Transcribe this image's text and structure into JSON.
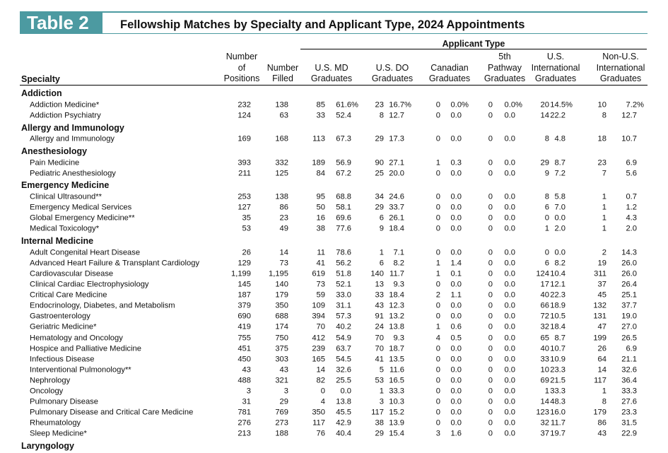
{
  "header": {
    "label": "Table 2",
    "title": "Fellowship Matches by Specialty and Applicant Type, 2024 Appointments"
  },
  "table": {
    "super_header": "Applicant Type",
    "columns": [
      [
        "Specialty"
      ],
      [
        "Number",
        "of",
        "Positions"
      ],
      [
        "Number",
        "Filled"
      ],
      [
        "U.S. MD",
        "Graduates"
      ],
      [
        "U.S. DO",
        "Graduates"
      ],
      [
        "Canadian",
        "Graduates"
      ],
      [
        "5th",
        "Pathway",
        "Graduates"
      ],
      [
        "U.S.",
        "International",
        "Graduates"
      ],
      [
        "Non-U.S.",
        "International",
        "Graduates"
      ]
    ],
    "groups": [
      {
        "name": "Addiction",
        "rows": [
          [
            "Addiction Medicine*",
            "232",
            "138",
            "85",
            "61.6%",
            "23",
            "16.7%",
            "0",
            "0.0%",
            "0",
            "0.0%",
            "20",
            "14.5%",
            "10",
            "7.2%"
          ],
          [
            "Addiction Psychiatry",
            "124",
            "63",
            "33",
            "52.4",
            "8",
            "12.7",
            "0",
            "0.0",
            "0",
            "0.0",
            "14",
            "22.2",
            "8",
            "12.7"
          ]
        ]
      },
      {
        "name": "Allergy and Immunology",
        "rows": [
          [
            "Allergy and Immunology",
            "169",
            "168",
            "113",
            "67.3",
            "29",
            "17.3",
            "0",
            "0.0",
            "0",
            "0.0",
            "8",
            "4.8",
            "18",
            "10.7"
          ]
        ]
      },
      {
        "name": "Anesthesiology",
        "rows": [
          [
            "Pain Medicine",
            "393",
            "332",
            "189",
            "56.9",
            "90",
            "27.1",
            "1",
            "0.3",
            "0",
            "0.0",
            "29",
            "8.7",
            "23",
            "6.9"
          ],
          [
            "Pediatric Anesthesiology",
            "211",
            "125",
            "84",
            "67.2",
            "25",
            "20.0",
            "0",
            "0.0",
            "0",
            "0.0",
            "9",
            "7.2",
            "7",
            "5.6"
          ]
        ]
      },
      {
        "name": "Emergency Medicine",
        "rows": [
          [
            "Clinical Ultrasound**",
            "253",
            "138",
            "95",
            "68.8",
            "34",
            "24.6",
            "0",
            "0.0",
            "0",
            "0.0",
            "8",
            "5.8",
            "1",
            "0.7"
          ],
          [
            "Emergency Medical Services",
            "127",
            "86",
            "50",
            "58.1",
            "29",
            "33.7",
            "0",
            "0.0",
            "0",
            "0.0",
            "6",
            "7.0",
            "1",
            "1.2"
          ],
          [
            "Global Emergency Medicine**",
            "35",
            "23",
            "16",
            "69.6",
            "6",
            "26.1",
            "0",
            "0.0",
            "0",
            "0.0",
            "0",
            "0.0",
            "1",
            "4.3"
          ],
          [
            "Medical Toxicology*",
            "53",
            "49",
            "38",
            "77.6",
            "9",
            "18.4",
            "0",
            "0.0",
            "0",
            "0.0",
            "1",
            "2.0",
            "1",
            "2.0"
          ]
        ]
      },
      {
        "name": "Internal Medicine",
        "rows": [
          [
            "Adult Congenital Heart Disease",
            "26",
            "14",
            "11",
            "78.6",
            "1",
            "7.1",
            "0",
            "0.0",
            "0",
            "0.0",
            "0",
            "0.0",
            "2",
            "14.3"
          ],
          [
            "Advanced Heart Failure & Transplant Cardiology",
            "129",
            "73",
            "41",
            "56.2",
            "6",
            "8.2",
            "1",
            "1.4",
            "0",
            "0.0",
            "6",
            "8.2",
            "19",
            "26.0"
          ],
          [
            "Cardiovascular Disease",
            "1,199",
            "1,195",
            "619",
            "51.8",
            "140",
            "11.7",
            "1",
            "0.1",
            "0",
            "0.0",
            "124",
            "10.4",
            "311",
            "26.0"
          ],
          [
            "Clinical Cardiac Electrophysiology",
            "145",
            "140",
            "73",
            "52.1",
            "13",
            "9.3",
            "0",
            "0.0",
            "0",
            "0.0",
            "17",
            "12.1",
            "37",
            "26.4"
          ],
          [
            "Critical Care Medicine",
            "187",
            "179",
            "59",
            "33.0",
            "33",
            "18.4",
            "2",
            "1.1",
            "0",
            "0.0",
            "40",
            "22.3",
            "45",
            "25.1"
          ],
          [
            "Endocrinology, Diabetes, and Metabolism",
            "379",
            "350",
            "109",
            "31.1",
            "43",
            "12.3",
            "0",
            "0.0",
            "0",
            "0.0",
            "66",
            "18.9",
            "132",
            "37.7"
          ],
          [
            "Gastroenterology",
            "690",
            "688",
            "394",
            "57.3",
            "91",
            "13.2",
            "0",
            "0.0",
            "0",
            "0.0",
            "72",
            "10.5",
            "131",
            "19.0"
          ],
          [
            "Geriatric Medicine*",
            "419",
            "174",
            "70",
            "40.2",
            "24",
            "13.8",
            "1",
            "0.6",
            "0",
            "0.0",
            "32",
            "18.4",
            "47",
            "27.0"
          ],
          [
            "Hematology and Oncology",
            "755",
            "750",
            "412",
            "54.9",
            "70",
            "9.3",
            "4",
            "0.5",
            "0",
            "0.0",
            "65",
            "8.7",
            "199",
            "26.5"
          ],
          [
            "Hospice and Palliative Medicine",
            "451",
            "375",
            "239",
            "63.7",
            "70",
            "18.7",
            "0",
            "0.0",
            "0",
            "0.0",
            "40",
            "10.7",
            "26",
            "6.9"
          ],
          [
            "Infectious Disease",
            "450",
            "303",
            "165",
            "54.5",
            "41",
            "13.5",
            "0",
            "0.0",
            "0",
            "0.0",
            "33",
            "10.9",
            "64",
            "21.1"
          ],
          [
            "Interventional Pulmonology**",
            "43",
            "43",
            "14",
            "32.6",
            "5",
            "11.6",
            "0",
            "0.0",
            "0",
            "0.0",
            "10",
            "23.3",
            "14",
            "32.6"
          ],
          [
            "Nephrology",
            "488",
            "321",
            "82",
            "25.5",
            "53",
            "16.5",
            "0",
            "0.0",
            "0",
            "0.0",
            "69",
            "21.5",
            "117",
            "36.4"
          ],
          [
            "Oncology",
            "3",
            "3",
            "0",
            "0.0",
            "1",
            "33.3",
            "0",
            "0.0",
            "0",
            "0.0",
            "1",
            "33.3",
            "1",
            "33.3"
          ],
          [
            "Pulmonary Disease",
            "31",
            "29",
            "4",
            "13.8",
            "3",
            "10.3",
            "0",
            "0.0",
            "0",
            "0.0",
            "14",
            "48.3",
            "8",
            "27.6"
          ],
          [
            "Pulmonary Disease and Critical Care Medicine",
            "781",
            "769",
            "350",
            "45.5",
            "117",
            "15.2",
            "0",
            "0.0",
            "0",
            "0.0",
            "123",
            "16.0",
            "179",
            "23.3"
          ],
          [
            "Rheumatology",
            "276",
            "273",
            "117",
            "42.9",
            "38",
            "13.9",
            "0",
            "0.0",
            "0",
            "0.0",
            "32",
            "11.7",
            "86",
            "31.5"
          ],
          [
            "Sleep Medicine*",
            "213",
            "188",
            "76",
            "40.4",
            "29",
            "15.4",
            "3",
            "1.6",
            "0",
            "0.0",
            "37",
            "19.7",
            "43",
            "22.9"
          ]
        ]
      },
      {
        "name": "Laryngology",
        "rows": []
      }
    ]
  }
}
